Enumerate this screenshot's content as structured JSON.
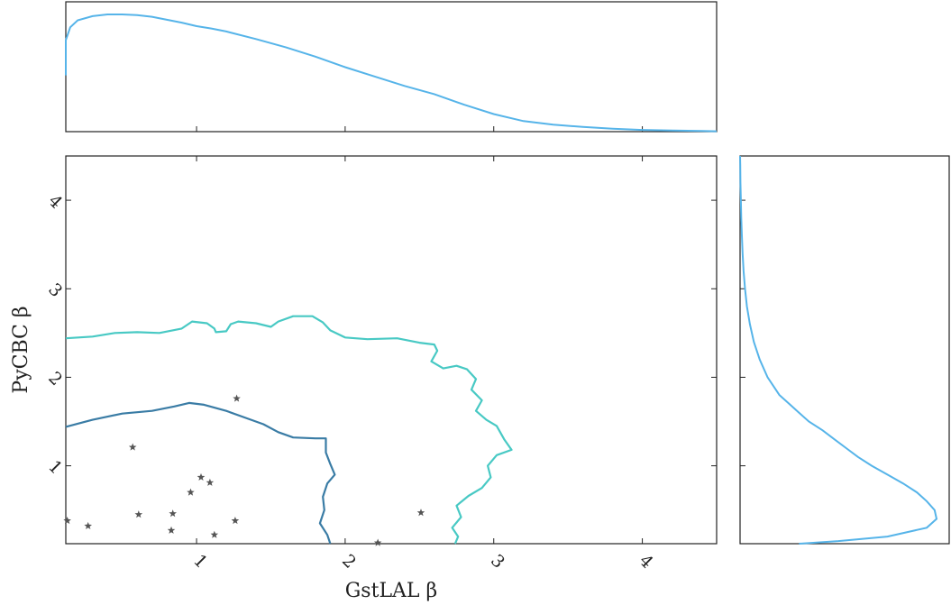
{
  "chart_data": [
    {
      "type": "line",
      "panel": "top-marginal",
      "x": [
        0.0,
        0.05,
        0.1,
        0.15,
        0.2,
        0.3,
        0.4,
        0.5,
        0.6,
        0.7,
        0.8,
        0.9,
        1.0,
        1.1,
        1.2,
        1.4,
        1.6,
        1.8,
        2.0,
        2.2,
        2.4,
        2.6,
        2.8,
        3.0,
        3.2,
        3.4,
        3.6,
        3.8,
        4.0,
        4.2,
        4.4,
        4.5
      ],
      "y": [
        0.48,
        0.62,
        0.78,
        0.89,
        0.95,
        0.985,
        1.0,
        1.0,
        0.995,
        0.98,
        0.955,
        0.93,
        0.9,
        0.88,
        0.855,
        0.79,
        0.72,
        0.64,
        0.55,
        0.47,
        0.39,
        0.32,
        0.23,
        0.15,
        0.09,
        0.06,
        0.04,
        0.025,
        0.015,
        0.01,
        0.005,
        0.003
      ],
      "xlim": [
        0.12,
        4.5
      ],
      "color": "#56b4e9"
    },
    {
      "type": "scatter",
      "panel": "joint",
      "title": "",
      "xlabel": "GstLAL β",
      "ylabel": "PyCBC β",
      "xlim": [
        0.12,
        4.5
      ],
      "ylim": [
        0.12,
        4.5
      ],
      "xticks": [
        "1",
        "2",
        "3",
        "4"
      ],
      "yticks": [
        "1",
        "2",
        "3",
        "4"
      ],
      "points": [
        {
          "x": 0.13,
          "y": 0.38
        },
        {
          "x": 0.27,
          "y": 0.32
        },
        {
          "x": 0.57,
          "y": 1.21
        },
        {
          "x": 0.61,
          "y": 0.45
        },
        {
          "x": 0.83,
          "y": 0.27
        },
        {
          "x": 0.84,
          "y": 0.46
        },
        {
          "x": 0.96,
          "y": 0.7
        },
        {
          "x": 1.03,
          "y": 0.87
        },
        {
          "x": 1.09,
          "y": 0.81
        },
        {
          "x": 1.12,
          "y": 0.22
        },
        {
          "x": 1.26,
          "y": 0.38
        },
        {
          "x": 1.27,
          "y": 1.76
        },
        {
          "x": 2.22,
          "y": 0.13
        },
        {
          "x": 2.51,
          "y": 0.47
        }
      ],
      "marker_color": "#555555",
      "contours": [
        {
          "color": "#3a7ca5",
          "points": [
            [
              0.12,
              1.44
            ],
            [
              0.3,
              1.52
            ],
            [
              0.5,
              1.59
            ],
            [
              0.7,
              1.62
            ],
            [
              0.85,
              1.67
            ],
            [
              0.95,
              1.71
            ],
            [
              1.05,
              1.69
            ],
            [
              1.2,
              1.62
            ],
            [
              1.35,
              1.53
            ],
            [
              1.45,
              1.47
            ],
            [
              1.55,
              1.38
            ],
            [
              1.65,
              1.32
            ],
            [
              1.8,
              1.31
            ],
            [
              1.87,
              1.31
            ],
            [
              1.87,
              1.15
            ],
            [
              1.9,
              1.02
            ],
            [
              1.93,
              0.9
            ],
            [
              1.88,
              0.8
            ],
            [
              1.85,
              0.65
            ],
            [
              1.86,
              0.5
            ],
            [
              1.83,
              0.35
            ],
            [
              1.88,
              0.22
            ],
            [
              1.9,
              0.12
            ]
          ]
        },
        {
          "color": "#48c9c4",
          "points": [
            [
              0.12,
              2.44
            ],
            [
              0.3,
              2.46
            ],
            [
              0.45,
              2.5
            ],
            [
              0.6,
              2.51
            ],
            [
              0.75,
              2.5
            ],
            [
              0.9,
              2.55
            ],
            [
              0.97,
              2.63
            ],
            [
              1.07,
              2.61
            ],
            [
              1.12,
              2.55
            ],
            [
              1.13,
              2.51
            ],
            [
              1.2,
              2.52
            ],
            [
              1.23,
              2.6
            ],
            [
              1.28,
              2.63
            ],
            [
              1.4,
              2.61
            ],
            [
              1.5,
              2.57
            ],
            [
              1.55,
              2.63
            ],
            [
              1.65,
              2.69
            ],
            [
              1.78,
              2.69
            ],
            [
              1.85,
              2.62
            ],
            [
              1.9,
              2.53
            ],
            [
              2.0,
              2.45
            ],
            [
              2.15,
              2.43
            ],
            [
              2.35,
              2.44
            ],
            [
              2.5,
              2.39
            ],
            [
              2.6,
              2.37
            ],
            [
              2.62,
              2.3
            ],
            [
              2.58,
              2.18
            ],
            [
              2.66,
              2.1
            ],
            [
              2.75,
              2.13
            ],
            [
              2.82,
              2.09
            ],
            [
              2.88,
              1.98
            ],
            [
              2.85,
              1.86
            ],
            [
              2.92,
              1.74
            ],
            [
              2.88,
              1.62
            ],
            [
              2.95,
              1.52
            ],
            [
              3.02,
              1.45
            ],
            [
              3.07,
              1.3
            ],
            [
              3.12,
              1.18
            ],
            [
              3.02,
              1.12
            ],
            [
              2.96,
              1.0
            ],
            [
              2.98,
              0.87
            ],
            [
              2.92,
              0.75
            ],
            [
              2.83,
              0.66
            ],
            [
              2.75,
              0.55
            ],
            [
              2.78,
              0.42
            ],
            [
              2.72,
              0.3
            ],
            [
              2.76,
              0.2
            ],
            [
              2.74,
              0.12
            ]
          ]
        }
      ]
    },
    {
      "type": "line",
      "panel": "right-marginal",
      "orientation": "horizontal",
      "y": [
        0.12,
        0.15,
        0.2,
        0.3,
        0.4,
        0.5,
        0.6,
        0.7,
        0.8,
        0.9,
        1.0,
        1.1,
        1.2,
        1.3,
        1.4,
        1.5,
        1.6,
        1.7,
        1.8,
        2.0,
        2.2,
        2.4,
        2.6,
        2.8,
        3.0,
        3.2,
        3.4,
        3.6,
        3.8,
        4.0,
        4.2,
        4.4,
        4.5
      ],
      "x": [
        0.3,
        0.5,
        0.75,
        0.95,
        1.0,
        0.99,
        0.95,
        0.9,
        0.83,
        0.75,
        0.67,
        0.6,
        0.54,
        0.48,
        0.42,
        0.35,
        0.3,
        0.25,
        0.2,
        0.14,
        0.1,
        0.07,
        0.05,
        0.035,
        0.025,
        0.018,
        0.013,
        0.009,
        0.006,
        0.004,
        0.002,
        0.001,
        0.0
      ],
      "ylim": [
        0.12,
        4.5
      ],
      "color": "#56b4e9"
    }
  ]
}
